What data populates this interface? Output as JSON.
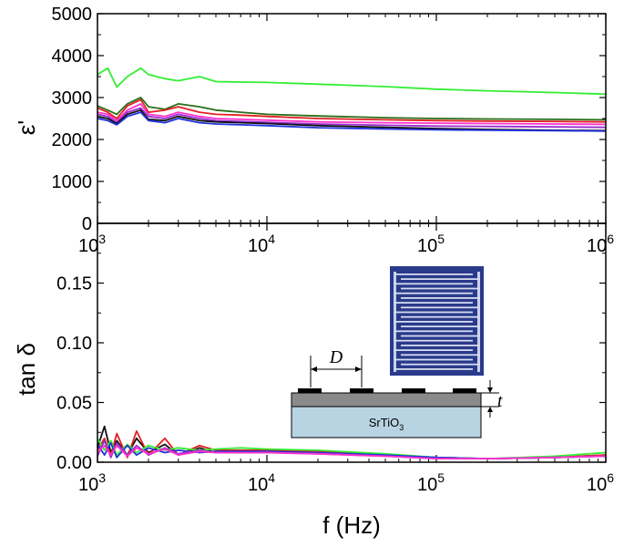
{
  "chart_data": [
    {
      "type": "line",
      "panel": "top",
      "title": "",
      "ylabel": "ε'",
      "xlabel": "",
      "xscale": "log",
      "xlim": [
        1000,
        1000000
      ],
      "ylim": [
        0,
        5000
      ],
      "yticks": [
        "0",
        "1000",
        "2000",
        "3000",
        "4000",
        "5000"
      ],
      "xticks": [
        {
          "base": "10",
          "exp": "3"
        },
        {
          "base": "10",
          "exp": "4"
        },
        {
          "base": "10",
          "exp": "5"
        },
        {
          "base": "10",
          "exp": "6"
        }
      ],
      "x": [
        1000,
        1150,
        1300,
        1500,
        1800,
        2000,
        2500,
        3000,
        4000,
        5000,
        7000,
        10000,
        20000,
        50000,
        100000,
        200000,
        500000,
        1000000
      ],
      "series": [
        {
          "name": "green",
          "color": "#33ee33",
          "values": [
            3550,
            3700,
            3250,
            3500,
            3700,
            3550,
            3450,
            3400,
            3500,
            3380,
            3370,
            3360,
            3320,
            3260,
            3200,
            3160,
            3120,
            3080
          ]
        },
        {
          "name": "dark-green",
          "color": "#2a6e1a",
          "values": [
            2800,
            2700,
            2600,
            2850,
            3000,
            2780,
            2720,
            2850,
            2780,
            2700,
            2650,
            2600,
            2560,
            2520,
            2500,
            2490,
            2480,
            2470
          ]
        },
        {
          "name": "red",
          "color": "#e02020",
          "values": [
            2750,
            2650,
            2500,
            2800,
            2950,
            2650,
            2700,
            2780,
            2650,
            2600,
            2580,
            2550,
            2500,
            2470,
            2450,
            2440,
            2430,
            2420
          ]
        },
        {
          "name": "magenta",
          "color": "#ff33cc",
          "values": [
            2650,
            2600,
            2450,
            2700,
            2850,
            2600,
            2550,
            2650,
            2550,
            2500,
            2480,
            2460,
            2420,
            2400,
            2390,
            2380,
            2370,
            2360
          ]
        },
        {
          "name": "purple",
          "color": "#9a2ed0",
          "values": [
            2600,
            2550,
            2400,
            2650,
            2750,
            2550,
            2500,
            2600,
            2500,
            2450,
            2430,
            2410,
            2370,
            2340,
            2320,
            2310,
            2300,
            2290
          ]
        },
        {
          "name": "black",
          "color": "#111111",
          "values": [
            2550,
            2500,
            2380,
            2600,
            2700,
            2480,
            2450,
            2550,
            2450,
            2420,
            2400,
            2380,
            2330,
            2290,
            2260,
            2240,
            2220,
            2210
          ]
        },
        {
          "name": "blue",
          "color": "#2233dd",
          "values": [
            2500,
            2450,
            2350,
            2550,
            2650,
            2450,
            2400,
            2500,
            2400,
            2370,
            2350,
            2330,
            2280,
            2250,
            2230,
            2220,
            2210,
            2200
          ]
        }
      ]
    },
    {
      "type": "line",
      "panel": "bottom",
      "title": "",
      "ylabel": "tan δ",
      "xlabel": "f (Hz)",
      "xscale": "log",
      "xlim": [
        1000,
        1000000
      ],
      "ylim": [
        0,
        0.2
      ],
      "yticks": [
        "0.00",
        "0.05",
        "0.10",
        "0.15"
      ],
      "xticks": [
        {
          "base": "10",
          "exp": "3"
        },
        {
          "base": "10",
          "exp": "4"
        },
        {
          "base": "10",
          "exp": "5"
        },
        {
          "base": "10",
          "exp": "6"
        }
      ],
      "x": [
        1000,
        1100,
        1200,
        1300,
        1500,
        1700,
        2000,
        2500,
        3000,
        4000,
        5000,
        7000,
        10000,
        20000,
        50000,
        100000,
        200000,
        500000,
        1000000
      ],
      "series": [
        {
          "name": "black",
          "color": "#111111",
          "values": [
            0.012,
            0.03,
            0.008,
            0.018,
            0.006,
            0.02,
            0.008,
            0.015,
            0.006,
            0.012,
            0.008,
            0.009,
            0.009,
            0.008,
            0.006,
            0.004,
            0.003,
            0.004,
            0.006
          ]
        },
        {
          "name": "red",
          "color": "#e02020",
          "values": [
            0.01,
            0.02,
            0.006,
            0.024,
            0.004,
            0.026,
            0.006,
            0.02,
            0.006,
            0.014,
            0.01,
            0.01,
            0.01,
            0.009,
            0.006,
            0.004,
            0.003,
            0.004,
            0.006
          ]
        },
        {
          "name": "green",
          "color": "#33ee33",
          "values": [
            0.02,
            0.01,
            0.018,
            0.006,
            0.015,
            0.008,
            0.014,
            0.01,
            0.012,
            0.01,
            0.011,
            0.012,
            0.011,
            0.01,
            0.007,
            0.004,
            0.003,
            0.005,
            0.008
          ]
        },
        {
          "name": "blue",
          "color": "#2233dd",
          "values": [
            0.015,
            0.006,
            0.016,
            0.004,
            0.014,
            0.006,
            0.012,
            0.008,
            0.01,
            0.008,
            0.009,
            0.009,
            0.009,
            0.008,
            0.006,
            0.004,
            0.003,
            0.004,
            0.005
          ]
        },
        {
          "name": "purple",
          "color": "#9a2ed0",
          "values": [
            0.005,
            0.018,
            0.004,
            0.016,
            0.006,
            0.014,
            0.006,
            0.012,
            0.007,
            0.01,
            0.008,
            0.008,
            0.008,
            0.007,
            0.005,
            0.003,
            0.003,
            0.004,
            0.005
          ]
        },
        {
          "name": "magenta",
          "color": "#ff33cc",
          "values": [
            0.008,
            0.014,
            0.006,
            0.014,
            0.005,
            0.012,
            0.007,
            0.011,
            0.006,
            0.009,
            0.008,
            0.008,
            0.008,
            0.007,
            0.005,
            0.003,
            0.003,
            0.004,
            0.005
          ]
        }
      ]
    }
  ],
  "inset": {
    "spacing_label": "D",
    "thickness_label": "t",
    "substrate_formula": "SrTiO",
    "substrate_subscript": "3",
    "photo_color": "#2a3a8a",
    "substrate_color": "#b8d4e3",
    "film_color": "#8a8a8a"
  }
}
